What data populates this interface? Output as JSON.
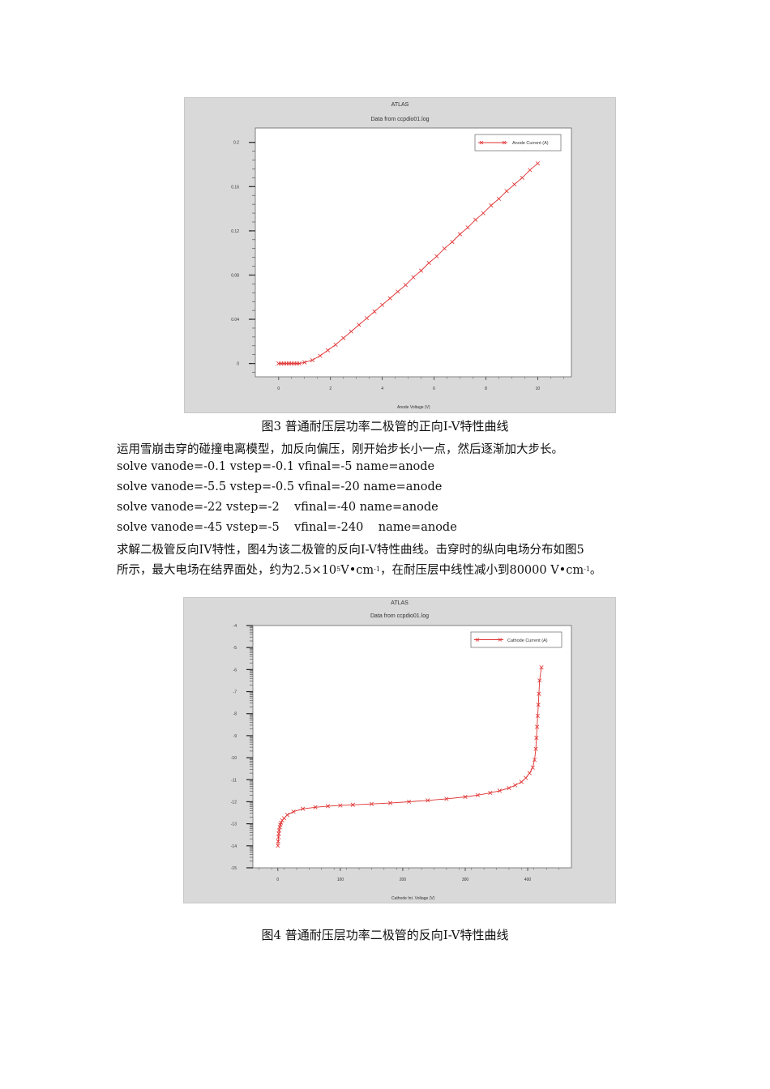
{
  "figure3": {
    "title": "ATLAS",
    "subtitle": "Data from ccpdio01.log",
    "legend": "Anode Current (A)",
    "x_label": "Anode Voltage (V)",
    "y_ticks": [
      "0.2",
      "0.16",
      "0.12",
      "0.08",
      "0.04",
      "0"
    ],
    "x_ticks": [
      "0",
      "2",
      "4",
      "6",
      "8",
      "10"
    ],
    "caption": "图3  普通耐压层功率二极管的正向I-V特性曲线"
  },
  "text": {
    "line1": "运用雪崩击穿的碰撞电离模型，加反向偏压，刚开始步长小一点，然后逐渐加大步长。",
    "cmd1": "solve vanode=-0.1 vstep=-0.1 vfinal=-5 name=anode",
    "cmd2": "solve vanode=-5.5 vstep=-0.5 vfinal=-20 name=anode",
    "cmd3": "solve vanode=-22 vstep=-2    vfinal=-40 name=anode",
    "cmd4": "solve vanode=-45 vstep=-5    vfinal=-240    name=anode",
    "para1": "求解二极管反向IV特性，图4为该二极管的反向I-V特性曲线。击穿时的纵向电场分布如图5",
    "para2a": "所示，最大电场在结界面处，约为2.5×10",
    "para2_sup1": "5",
    "para2b": "V•cm",
    "para2_sup2": "-1",
    "para2c": "，在耐压层中线性减小到80000 V•cm",
    "para2_sup3": "-1",
    "para2d": "。"
  },
  "figure4": {
    "title": "ATLAS",
    "subtitle": "Data from ccpdio01.log",
    "legend": "Cathode Current (A)",
    "x_label": "Cathode Int. Voltage (V)",
    "y_ticks": [
      "-4",
      "-5",
      "-6",
      "-7",
      "-8",
      "-9",
      "-10",
      "-11",
      "-12",
      "-13",
      "-14",
      "-15"
    ],
    "x_ticks": [
      "0",
      "100",
      "200",
      "300",
      "400"
    ],
    "caption": "图4    普通耐压层功率二极管的反向I-V特性曲线"
  },
  "chart_data": [
    {
      "type": "line",
      "title": "ATLAS",
      "subtitle": "Data from ccpdio01.log",
      "xlabel": "Anode Voltage (V)",
      "ylabel": "",
      "xlim": [
        -0.9,
        11.3
      ],
      "ylim": [
        -0.012,
        0.213
      ],
      "grid": false,
      "legend_position": "top-right",
      "series": [
        {
          "name": "Anode Current (A)",
          "color": "#e03030",
          "x": [
            0,
            0.1,
            0.2,
            0.3,
            0.4,
            0.5,
            0.6,
            0.7,
            0.8,
            1.0,
            1.3,
            1.6,
            1.9,
            2.2,
            2.5,
            2.8,
            3.1,
            3.4,
            3.7,
            4.0,
            4.3,
            4.6,
            4.9,
            5.2,
            5.5,
            5.8,
            6.1,
            6.4,
            6.7,
            7.0,
            7.3,
            7.6,
            7.9,
            8.2,
            8.5,
            8.8,
            9.1,
            9.4,
            9.7,
            10.0
          ],
          "y": [
            0,
            0,
            0,
            0,
            0,
            0,
            0,
            0,
            0,
            0.001,
            0.003,
            0.007,
            0.012,
            0.017,
            0.023,
            0.029,
            0.035,
            0.041,
            0.047,
            0.053,
            0.059,
            0.065,
            0.071,
            0.078,
            0.084,
            0.091,
            0.097,
            0.104,
            0.11,
            0.117,
            0.123,
            0.13,
            0.136,
            0.143,
            0.149,
            0.156,
            0.162,
            0.168,
            0.175,
            0.181
          ]
        }
      ]
    },
    {
      "type": "line",
      "title": "ATLAS",
      "subtitle": "Data from ccpdio01.log",
      "xlabel": "Cathode Int. Voltage (V)",
      "ylabel": "",
      "xlim": [
        -40,
        470
      ],
      "ylim": [
        -15,
        -4
      ],
      "grid": false,
      "legend_position": "top-right",
      "series": [
        {
          "name": "Cathode Current (A)",
          "color": "#e03030",
          "x": [
            0,
            0.5,
            1,
            1.5,
            2,
            3,
            4,
            5,
            7,
            10,
            15,
            25,
            40,
            60,
            80,
            100,
            120,
            150,
            180,
            210,
            240,
            270,
            300,
            320,
            340,
            355,
            370,
            380,
            390,
            397,
            403,
            408,
            411,
            413,
            414,
            415,
            416,
            417,
            418,
            419,
            422
          ],
          "y": [
            -14.0,
            -13.8,
            -13.6,
            -13.45,
            -13.3,
            -13.15,
            -13.05,
            -12.95,
            -12.85,
            -12.75,
            -12.6,
            -12.45,
            -12.32,
            -12.25,
            -12.2,
            -12.17,
            -12.14,
            -12.1,
            -12.06,
            -12.0,
            -11.94,
            -11.87,
            -11.78,
            -11.7,
            -11.6,
            -11.5,
            -11.38,
            -11.25,
            -11.1,
            -10.92,
            -10.7,
            -10.45,
            -10.1,
            -9.6,
            -9.1,
            -8.6,
            -8.1,
            -7.6,
            -7.1,
            -6.5,
            -5.9
          ]
        }
      ]
    }
  ]
}
